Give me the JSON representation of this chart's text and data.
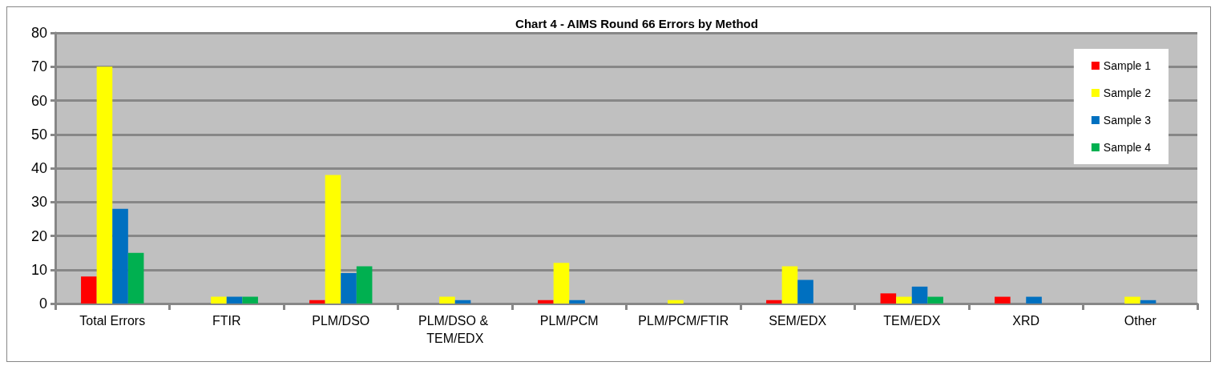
{
  "chart_data": {
    "type": "bar",
    "title": "Chart 4 - AIMS Round 66 Errors by Method",
    "categories": [
      "Total Errors",
      "FTIR",
      "PLM/DSO",
      "PLM/DSO & TEM/EDX",
      "PLM/PCM",
      "PLM/PCM/FTIR",
      "SEM/EDX",
      "TEM/EDX",
      "XRD",
      "Other"
    ],
    "series": [
      {
        "name": "Sample 1",
        "color": "#ff0000",
        "values": [
          8,
          0,
          1,
          0,
          1,
          0,
          1,
          3,
          2,
          0
        ]
      },
      {
        "name": "Sample 2",
        "color": "#ffff00",
        "values": [
          70,
          2,
          38,
          2,
          12,
          1,
          11,
          2,
          0,
          2
        ]
      },
      {
        "name": "Sample 3",
        "color": "#0070c0",
        "values": [
          28,
          2,
          9,
          1,
          1,
          0,
          7,
          5,
          2,
          1
        ]
      },
      {
        "name": "Sample 4",
        "color": "#00b050",
        "values": [
          15,
          2,
          11,
          0,
          0,
          0,
          0,
          2,
          0,
          0
        ]
      }
    ],
    "ylim": [
      0,
      80
    ],
    "yticks": [
      0,
      10,
      20,
      30,
      40,
      50,
      60,
      70,
      80
    ],
    "grid": "y",
    "legend": "top right"
  }
}
